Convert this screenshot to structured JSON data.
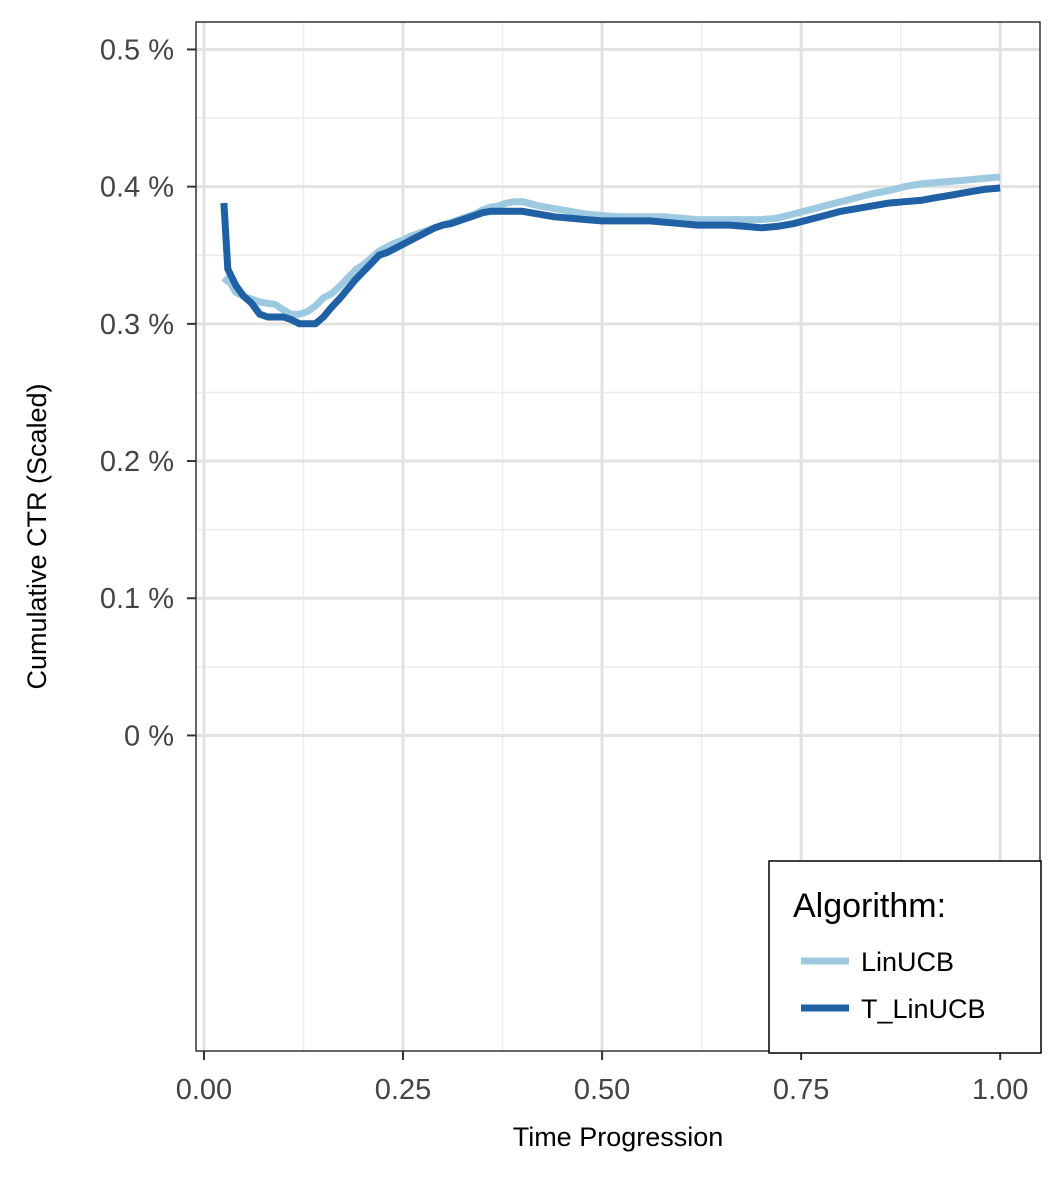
{
  "chart_data": {
    "type": "line",
    "title": "",
    "xlabel": "Time Progression",
    "ylabel": "Cumulative CTR (Scaled)",
    "xlim": [
      -0.01,
      1.05
    ],
    "ylim": [
      -0.0023,
      0.0052
    ],
    "x_ticks": [
      0,
      0.25,
      0.5,
      0.75,
      1
    ],
    "x_tick_labels": [
      "0.00",
      "0.25",
      "0.50",
      "0.75",
      "1.00"
    ],
    "y_ticks": [
      0,
      0.001,
      0.002,
      0.003,
      0.004,
      0.005
    ],
    "y_tick_labels": [
      "0 %",
      "0.1 %",
      "0.2 %",
      "0.3 %",
      "0.4 %",
      "0.5 %"
    ],
    "grid": true,
    "legend": {
      "title": "Algorithm:",
      "position": "bottom-right",
      "entries": [
        "LinUCB",
        "T_LinUCB"
      ]
    },
    "series": [
      {
        "name": "LinUCB",
        "color": "#9ecae1",
        "x": [
          0.025,
          0.03,
          0.04,
          0.05,
          0.06,
          0.07,
          0.08,
          0.09,
          0.1,
          0.11,
          0.12,
          0.13,
          0.14,
          0.15,
          0.16,
          0.17,
          0.18,
          0.19,
          0.2,
          0.21,
          0.22,
          0.23,
          0.24,
          0.25,
          0.26,
          0.27,
          0.28,
          0.29,
          0.3,
          0.31,
          0.32,
          0.33,
          0.34,
          0.35,
          0.36,
          0.37,
          0.38,
          0.39,
          0.4,
          0.42,
          0.44,
          0.46,
          0.48,
          0.5,
          0.52,
          0.54,
          0.56,
          0.58,
          0.6,
          0.62,
          0.64,
          0.66,
          0.68,
          0.7,
          0.72,
          0.74,
          0.76,
          0.78,
          0.8,
          0.82,
          0.84,
          0.86,
          0.88,
          0.9,
          0.92,
          0.94,
          0.96,
          0.98,
          1.0
        ],
        "y": [
          0.0033,
          0.00333,
          0.00323,
          0.0032,
          0.00318,
          0.00316,
          0.00315,
          0.00314,
          0.0031,
          0.00307,
          0.00307,
          0.00309,
          0.00313,
          0.00319,
          0.00322,
          0.00327,
          0.00333,
          0.00339,
          0.00343,
          0.00348,
          0.00353,
          0.00356,
          0.00359,
          0.00361,
          0.00364,
          0.00366,
          0.00368,
          0.0037,
          0.00372,
          0.00374,
          0.00376,
          0.00378,
          0.0038,
          0.00383,
          0.00385,
          0.00386,
          0.00388,
          0.00389,
          0.00389,
          0.00386,
          0.00384,
          0.00382,
          0.0038,
          0.00379,
          0.00378,
          0.00378,
          0.00378,
          0.00378,
          0.00377,
          0.00376,
          0.00376,
          0.00376,
          0.00376,
          0.00376,
          0.00377,
          0.0038,
          0.00383,
          0.00386,
          0.00389,
          0.00392,
          0.00395,
          0.00397,
          0.004,
          0.00402,
          0.00403,
          0.00404,
          0.00405,
          0.00406,
          0.00407
        ]
      },
      {
        "name": "T_LinUCB",
        "color": "#2060a4",
        "x": [
          0.025,
          0.03,
          0.04,
          0.05,
          0.06,
          0.07,
          0.08,
          0.09,
          0.1,
          0.11,
          0.12,
          0.13,
          0.14,
          0.15,
          0.16,
          0.17,
          0.18,
          0.19,
          0.2,
          0.21,
          0.22,
          0.23,
          0.24,
          0.25,
          0.26,
          0.27,
          0.28,
          0.29,
          0.3,
          0.31,
          0.32,
          0.33,
          0.34,
          0.35,
          0.36,
          0.37,
          0.38,
          0.39,
          0.4,
          0.42,
          0.44,
          0.46,
          0.48,
          0.5,
          0.52,
          0.54,
          0.56,
          0.58,
          0.6,
          0.62,
          0.64,
          0.66,
          0.68,
          0.7,
          0.72,
          0.74,
          0.76,
          0.78,
          0.8,
          0.82,
          0.84,
          0.86,
          0.88,
          0.9,
          0.92,
          0.94,
          0.96,
          0.98,
          1.0
        ],
        "y": [
          0.00388,
          0.0034,
          0.00328,
          0.0032,
          0.00315,
          0.00307,
          0.00305,
          0.00305,
          0.00305,
          0.00303,
          0.003,
          0.003,
          0.003,
          0.00305,
          0.00312,
          0.00318,
          0.00325,
          0.00332,
          0.00338,
          0.00344,
          0.0035,
          0.00352,
          0.00355,
          0.00358,
          0.00361,
          0.00364,
          0.00367,
          0.0037,
          0.00372,
          0.00373,
          0.00375,
          0.00377,
          0.00379,
          0.00381,
          0.00382,
          0.00382,
          0.00382,
          0.00382,
          0.00382,
          0.0038,
          0.00378,
          0.00377,
          0.00376,
          0.00375,
          0.00375,
          0.00375,
          0.00375,
          0.00374,
          0.00373,
          0.00372,
          0.00372,
          0.00372,
          0.00371,
          0.0037,
          0.00371,
          0.00373,
          0.00376,
          0.00379,
          0.00382,
          0.00384,
          0.00386,
          0.00388,
          0.00389,
          0.0039,
          0.00392,
          0.00394,
          0.00396,
          0.00398,
          0.00399
        ]
      }
    ]
  }
}
